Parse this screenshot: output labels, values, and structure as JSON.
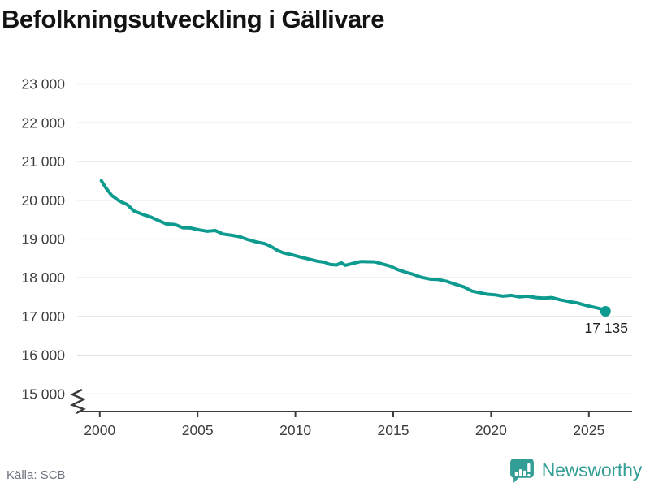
{
  "title": "Befolkningsutveckling i Gällivare",
  "source": "Källa: SCB",
  "branding": {
    "name": "Newsworthy",
    "logo_icon": "bar-chart-speech-bubble-icon",
    "color": "#339e95"
  },
  "colors": {
    "line": "#0d9a8f",
    "grid": "#e2e2e2",
    "axis": "#3c3c3c",
    "tick_label": "#3d3d3d",
    "end_label": "#1f1f1f",
    "title": "#131313",
    "source_text": "#6e7480"
  },
  "chart_data": {
    "type": "line",
    "title": "Befolkningsutveckling i Gällivare",
    "xlabel": "",
    "ylabel": "",
    "x_range": [
      1998.85,
      2027.05
    ],
    "y_range": [
      14550,
      23250
    ],
    "y_axis_break": true,
    "grid": "horizontal",
    "legend": "none",
    "x_ticks": [
      2000,
      2005,
      2010,
      2015,
      2020,
      2025
    ],
    "y_ticks": [
      {
        "value": 23000,
        "label": "23 000"
      },
      {
        "value": 22000,
        "label": "22 000"
      },
      {
        "value": 21000,
        "label": "21 000"
      },
      {
        "value": 20000,
        "label": "20 000"
      },
      {
        "value": 19000,
        "label": "19 000"
      },
      {
        "value": 18000,
        "label": "18 000"
      },
      {
        "value": 17000,
        "label": "17 000"
      },
      {
        "value": 16000,
        "label": "16 000"
      },
      {
        "value": 15000,
        "label": "15 000"
      }
    ],
    "series": [
      {
        "points": [
          [
            2000.08,
            20505
          ],
          [
            2000.3,
            20330
          ],
          [
            2000.6,
            20130
          ],
          [
            2000.95,
            20000
          ],
          [
            2001.15,
            19945
          ],
          [
            2001.4,
            19890
          ],
          [
            2001.75,
            19725
          ],
          [
            2002.2,
            19635
          ],
          [
            2002.6,
            19570
          ],
          [
            2003.0,
            19480
          ],
          [
            2003.4,
            19390
          ],
          [
            2003.85,
            19375
          ],
          [
            2004.25,
            19290
          ],
          [
            2004.65,
            19285
          ],
          [
            2005.1,
            19235
          ],
          [
            2005.5,
            19200
          ],
          [
            2005.9,
            19220
          ],
          [
            2006.3,
            19130
          ],
          [
            2006.75,
            19095
          ],
          [
            2007.15,
            19060
          ],
          [
            2007.55,
            18990
          ],
          [
            2008.0,
            18925
          ],
          [
            2008.4,
            18885
          ],
          [
            2008.6,
            18845
          ],
          [
            2008.85,
            18780
          ],
          [
            2009.05,
            18715
          ],
          [
            2009.4,
            18640
          ],
          [
            2009.85,
            18590
          ],
          [
            2010.25,
            18535
          ],
          [
            2010.7,
            18480
          ],
          [
            2011.1,
            18430
          ],
          [
            2011.5,
            18400
          ],
          [
            2011.75,
            18345
          ],
          [
            2012.1,
            18330
          ],
          [
            2012.35,
            18385
          ],
          [
            2012.55,
            18320
          ],
          [
            2012.95,
            18370
          ],
          [
            2013.35,
            18420
          ],
          [
            2014.05,
            18410
          ],
          [
            2014.45,
            18355
          ],
          [
            2014.85,
            18300
          ],
          [
            2015.25,
            18205
          ],
          [
            2015.65,
            18140
          ],
          [
            2016.05,
            18085
          ],
          [
            2016.45,
            18010
          ],
          [
            2016.9,
            17965
          ],
          [
            2017.3,
            17955
          ],
          [
            2017.75,
            17905
          ],
          [
            2018.15,
            17835
          ],
          [
            2018.6,
            17765
          ],
          [
            2019.0,
            17660
          ],
          [
            2019.4,
            17615
          ],
          [
            2019.8,
            17575
          ],
          [
            2020.2,
            17560
          ],
          [
            2020.6,
            17525
          ],
          [
            2021.05,
            17545
          ],
          [
            2021.45,
            17505
          ],
          [
            2021.85,
            17525
          ],
          [
            2022.3,
            17490
          ],
          [
            2022.7,
            17475
          ],
          [
            2023.1,
            17490
          ],
          [
            2023.5,
            17435
          ],
          [
            2024.0,
            17385
          ],
          [
            2024.4,
            17350
          ],
          [
            2024.8,
            17295
          ],
          [
            2025.2,
            17245
          ],
          [
            2025.6,
            17200
          ],
          [
            2025.85,
            17135
          ]
        ]
      }
    ],
    "last_point": {
      "x": 2025.85,
      "y": 17135,
      "label": "17 135"
    }
  }
}
